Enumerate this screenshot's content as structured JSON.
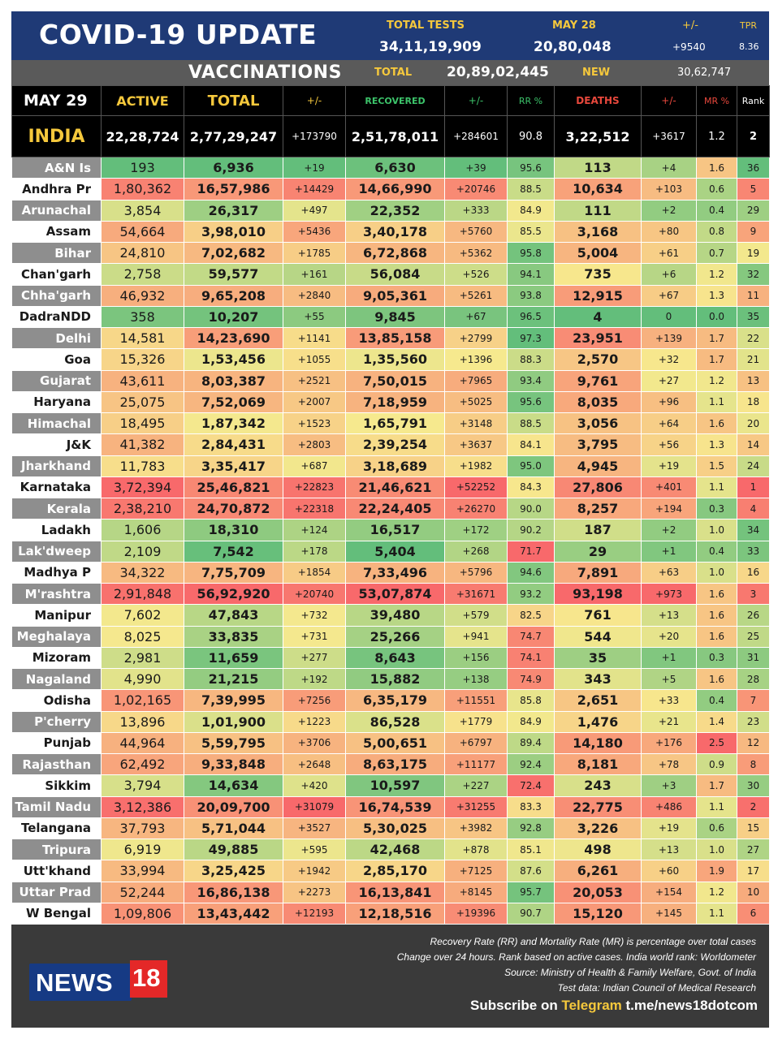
{
  "header": {
    "title": "COVID-19 UPDATE",
    "tests_label": "TOTAL TESTS",
    "tests_value": "34,11,19,909",
    "may28_label": "MAY 28",
    "may28_value": "20,80,048",
    "pm_label": "+/-",
    "pm_value": "+9540",
    "tpr_label": "TPR",
    "tpr_value": "8.36"
  },
  "vaccinations": {
    "title": "VACCINATIONS",
    "total_label": "TOTAL",
    "total_value": "20,89,02,445",
    "new_label": "NEW",
    "new_value": "30,62,747"
  },
  "columns": {
    "date": "MAY 29",
    "active": "ACTIVE",
    "total": "TOTAL",
    "total_change": "+/-",
    "recovered": "RECOVERED",
    "recovered_change": "+/-",
    "rr": "RR %",
    "deaths": "DEATHS",
    "deaths_change": "+/-",
    "mr": "MR %",
    "rank": "Rank"
  },
  "india": {
    "name": "INDIA",
    "active": "22,28,724",
    "total": "2,77,29,247",
    "total_change": "+173790",
    "recovered": "2,51,78,011",
    "recovered_change": "+284601",
    "rr": "90.8",
    "deaths": "3,22,512",
    "deaths_change": "+3617",
    "mr": "1.2",
    "rank": "2"
  },
  "states": [
    {
      "name": "A&N Is",
      "active": "193",
      "total": "6,936",
      "total_change": "+19",
      "recovered": "6,630",
      "recovered_change": "+39",
      "rr": "95.6",
      "deaths": "113",
      "deaths_change": "+4",
      "mr": "1.6",
      "rank": "36"
    },
    {
      "name": "Andhra Pr",
      "active": "1,80,362",
      "total": "16,57,986",
      "total_change": "+14429",
      "recovered": "14,66,990",
      "recovered_change": "+20746",
      "rr": "88.5",
      "deaths": "10,634",
      "deaths_change": "+103",
      "mr": "0.6",
      "rank": "5"
    },
    {
      "name": "Arunachal",
      "active": "3,854",
      "total": "26,317",
      "total_change": "+497",
      "recovered": "22,352",
      "recovered_change": "+333",
      "rr": "84.9",
      "deaths": "111",
      "deaths_change": "+2",
      "mr": "0.4",
      "rank": "29"
    },
    {
      "name": "Assam",
      "active": "54,664",
      "total": "3,98,010",
      "total_change": "+5436",
      "recovered": "3,40,178",
      "recovered_change": "+5760",
      "rr": "85.5",
      "deaths": "3,168",
      "deaths_change": "+80",
      "mr": "0.8",
      "rank": "9"
    },
    {
      "name": "Bihar",
      "active": "24,810",
      "total": "7,02,682",
      "total_change": "+1785",
      "recovered": "6,72,868",
      "recovered_change": "+5362",
      "rr": "95.8",
      "deaths": "5,004",
      "deaths_change": "+61",
      "mr": "0.7",
      "rank": "19"
    },
    {
      "name": "Chan'garh",
      "active": "2,758",
      "total": "59,577",
      "total_change": "+161",
      "recovered": "56,084",
      "recovered_change": "+526",
      "rr": "94.1",
      "deaths": "735",
      "deaths_change": "+6",
      "mr": "1.2",
      "rank": "32"
    },
    {
      "name": "Chha'garh",
      "active": "46,932",
      "total": "9,65,208",
      "total_change": "+2840",
      "recovered": "9,05,361",
      "recovered_change": "+5261",
      "rr": "93.8",
      "deaths": "12,915",
      "deaths_change": "+67",
      "mr": "1.3",
      "rank": "11"
    },
    {
      "name": "DadraNDD",
      "active": "358",
      "total": "10,207",
      "total_change": "+55",
      "recovered": "9,845",
      "recovered_change": "+67",
      "rr": "96.5",
      "deaths": "4",
      "deaths_change": "0",
      "mr": "0.0",
      "rank": "35"
    },
    {
      "name": "Delhi",
      "active": "14,581",
      "total": "14,23,690",
      "total_change": "+1141",
      "recovered": "13,85,158",
      "recovered_change": "+2799",
      "rr": "97.3",
      "deaths": "23,951",
      "deaths_change": "+139",
      "mr": "1.7",
      "rank": "22"
    },
    {
      "name": "Goa",
      "active": "15,326",
      "total": "1,53,456",
      "total_change": "+1055",
      "recovered": "1,35,560",
      "recovered_change": "+1396",
      "rr": "88.3",
      "deaths": "2,570",
      "deaths_change": "+32",
      "mr": "1.7",
      "rank": "21"
    },
    {
      "name": "Gujarat",
      "active": "43,611",
      "total": "8,03,387",
      "total_change": "+2521",
      "recovered": "7,50,015",
      "recovered_change": "+7965",
      "rr": "93.4",
      "deaths": "9,761",
      "deaths_change": "+27",
      "mr": "1.2",
      "rank": "13"
    },
    {
      "name": "Haryana",
      "active": "25,075",
      "total": "7,52,069",
      "total_change": "+2007",
      "recovered": "7,18,959",
      "recovered_change": "+5025",
      "rr": "95.6",
      "deaths": "8,035",
      "deaths_change": "+96",
      "mr": "1.1",
      "rank": "18"
    },
    {
      "name": "Himachal",
      "active": "18,495",
      "total": "1,87,342",
      "total_change": "+1523",
      "recovered": "1,65,791",
      "recovered_change": "+3148",
      "rr": "88.5",
      "deaths": "3,056",
      "deaths_change": "+64",
      "mr": "1.6",
      "rank": "20"
    },
    {
      "name": "J&K",
      "active": "41,382",
      "total": "2,84,431",
      "total_change": "+2803",
      "recovered": "2,39,254",
      "recovered_change": "+3637",
      "rr": "84.1",
      "deaths": "3,795",
      "deaths_change": "+56",
      "mr": "1.3",
      "rank": "14"
    },
    {
      "name": "Jharkhand",
      "active": "11,783",
      "total": "3,35,417",
      "total_change": "+687",
      "recovered": "3,18,689",
      "recovered_change": "+1982",
      "rr": "95.0",
      "deaths": "4,945",
      "deaths_change": "+19",
      "mr": "1.5",
      "rank": "24"
    },
    {
      "name": "Karnataka",
      "active": "3,72,394",
      "total": "25,46,821",
      "total_change": "+22823",
      "recovered": "21,46,621",
      "recovered_change": "+52252",
      "rr": "84.3",
      "deaths": "27,806",
      "deaths_change": "+401",
      "mr": "1.1",
      "rank": "1"
    },
    {
      "name": "Kerala",
      "active": "2,38,210",
      "total": "24,70,872",
      "total_change": "+22318",
      "recovered": "22,24,405",
      "recovered_change": "+26270",
      "rr": "90.0",
      "deaths": "8,257",
      "deaths_change": "+194",
      "mr": "0.3",
      "rank": "4"
    },
    {
      "name": "Ladakh",
      "active": "1,606",
      "total": "18,310",
      "total_change": "+124",
      "recovered": "16,517",
      "recovered_change": "+172",
      "rr": "90.2",
      "deaths": "187",
      "deaths_change": "+2",
      "mr": "1.0",
      "rank": "34"
    },
    {
      "name": "Lak'dweep",
      "active": "2,109",
      "total": "7,542",
      "total_change": "+178",
      "recovered": "5,404",
      "recovered_change": "+268",
      "rr": "71.7",
      "deaths": "29",
      "deaths_change": "+1",
      "mr": "0.4",
      "rank": "33"
    },
    {
      "name": "Madhya P",
      "active": "34,322",
      "total": "7,75,709",
      "total_change": "+1854",
      "recovered": "7,33,496",
      "recovered_change": "+5796",
      "rr": "94.6",
      "deaths": "7,891",
      "deaths_change": "+63",
      "mr": "1.0",
      "rank": "16"
    },
    {
      "name": "M'rashtra",
      "active": "2,91,848",
      "total": "56,92,920",
      "total_change": "+20740",
      "recovered": "53,07,874",
      "recovered_change": "+31671",
      "rr": "93.2",
      "deaths": "93,198",
      "deaths_change": "+973",
      "mr": "1.6",
      "rank": "3"
    },
    {
      "name": "Manipur",
      "active": "7,602",
      "total": "47,843",
      "total_change": "+732",
      "recovered": "39,480",
      "recovered_change": "+579",
      "rr": "82.5",
      "deaths": "761",
      "deaths_change": "+13",
      "mr": "1.6",
      "rank": "26"
    },
    {
      "name": "Meghalaya",
      "active": "8,025",
      "total": "33,835",
      "total_change": "+731",
      "recovered": "25,266",
      "recovered_change": "+941",
      "rr": "74.7",
      "deaths": "544",
      "deaths_change": "+20",
      "mr": "1.6",
      "rank": "25"
    },
    {
      "name": "Mizoram",
      "active": "2,981",
      "total": "11,659",
      "total_change": "+277",
      "recovered": "8,643",
      "recovered_change": "+156",
      "rr": "74.1",
      "deaths": "35",
      "deaths_change": "+1",
      "mr": "0.3",
      "rank": "31"
    },
    {
      "name": "Nagaland",
      "active": "4,990",
      "total": "21,215",
      "total_change": "+192",
      "recovered": "15,882",
      "recovered_change": "+138",
      "rr": "74.9",
      "deaths": "343",
      "deaths_change": "+5",
      "mr": "1.6",
      "rank": "28"
    },
    {
      "name": "Odisha",
      "active": "1,02,165",
      "total": "7,39,995",
      "total_change": "+7256",
      "recovered": "6,35,179",
      "recovered_change": "+11551",
      "rr": "85.8",
      "deaths": "2,651",
      "deaths_change": "+33",
      "mr": "0.4",
      "rank": "7"
    },
    {
      "name": "P'cherry",
      "active": "13,896",
      "total": "1,01,900",
      "total_change": "+1223",
      "recovered": "86,528",
      "recovered_change": "+1779",
      "rr": "84.9",
      "deaths": "1,476",
      "deaths_change": "+21",
      "mr": "1.4",
      "rank": "23"
    },
    {
      "name": "Punjab",
      "active": "44,964",
      "total": "5,59,795",
      "total_change": "+3706",
      "recovered": "5,00,651",
      "recovered_change": "+6797",
      "rr": "89.4",
      "deaths": "14,180",
      "deaths_change": "+176",
      "mr": "2.5",
      "rank": "12"
    },
    {
      "name": "Rajasthan",
      "active": "62,492",
      "total": "9,33,848",
      "total_change": "+2648",
      "recovered": "8,63,175",
      "recovered_change": "+11177",
      "rr": "92.4",
      "deaths": "8,181",
      "deaths_change": "+78",
      "mr": "0.9",
      "rank": "8"
    },
    {
      "name": "Sikkim",
      "active": "3,794",
      "total": "14,634",
      "total_change": "+420",
      "recovered": "10,597",
      "recovered_change": "+227",
      "rr": "72.4",
      "deaths": "243",
      "deaths_change": "+3",
      "mr": "1.7",
      "rank": "30"
    },
    {
      "name": "Tamil Nadu",
      "active": "3,12,386",
      "total": "20,09,700",
      "total_change": "+31079",
      "recovered": "16,74,539",
      "recovered_change": "+31255",
      "rr": "83.3",
      "deaths": "22,775",
      "deaths_change": "+486",
      "mr": "1.1",
      "rank": "2"
    },
    {
      "name": "Telangana",
      "active": "37,793",
      "total": "5,71,044",
      "total_change": "+3527",
      "recovered": "5,30,025",
      "recovered_change": "+3982",
      "rr": "92.8",
      "deaths": "3,226",
      "deaths_change": "+19",
      "mr": "0.6",
      "rank": "15"
    },
    {
      "name": "Tripura",
      "active": "6,919",
      "total": "49,885",
      "total_change": "+595",
      "recovered": "42,468",
      "recovered_change": "+878",
      "rr": "85.1",
      "deaths": "498",
      "deaths_change": "+13",
      "mr": "1.0",
      "rank": "27"
    },
    {
      "name": "Utt'khand",
      "active": "33,994",
      "total": "3,25,425",
      "total_change": "+1942",
      "recovered": "2,85,170",
      "recovered_change": "+7125",
      "rr": "87.6",
      "deaths": "6,261",
      "deaths_change": "+60",
      "mr": "1.9",
      "rank": "17"
    },
    {
      "name": "Uttar Prad",
      "active": "52,244",
      "total": "16,86,138",
      "total_change": "+2273",
      "recovered": "16,13,841",
      "recovered_change": "+8145",
      "rr": "95.7",
      "deaths": "20,053",
      "deaths_change": "+154",
      "mr": "1.2",
      "rank": "10"
    },
    {
      "name": "W Bengal",
      "active": "1,09,806",
      "total": "13,43,442",
      "total_change": "+12193",
      "recovered": "12,18,516",
      "recovered_change": "+19396",
      "rr": "90.7",
      "deaths": "15,120",
      "deaths_change": "+145",
      "mr": "1.1",
      "rank": "6"
    }
  ],
  "footer": {
    "logo_news": "NEWS",
    "logo_18": "18",
    "notes": [
      "Recovery Rate (RR) and Mortality Rate (MR) is percentage over total cases",
      "Change over 24 hours. Rank based on active cases. India world rank: Worldometer",
      "Source: Ministry of Health & Family Welfare, Govt. of India",
      "Test data: Indian Council of Medical Research"
    ],
    "subscribe_prefix": "Subscribe on ",
    "subscribe_telegram": "Telegram",
    "subscribe_link": " t.me/news18dotcom"
  },
  "colors": {
    "header_blue": "#1f3a76",
    "accent_yellow": "#f5c83c",
    "header_green": "#3cc36a",
    "header_red": "#e8483c",
    "scale_green": "#63be7b",
    "scale_yellow": "#f7e98e",
    "scale_red": "#f8696b"
  }
}
